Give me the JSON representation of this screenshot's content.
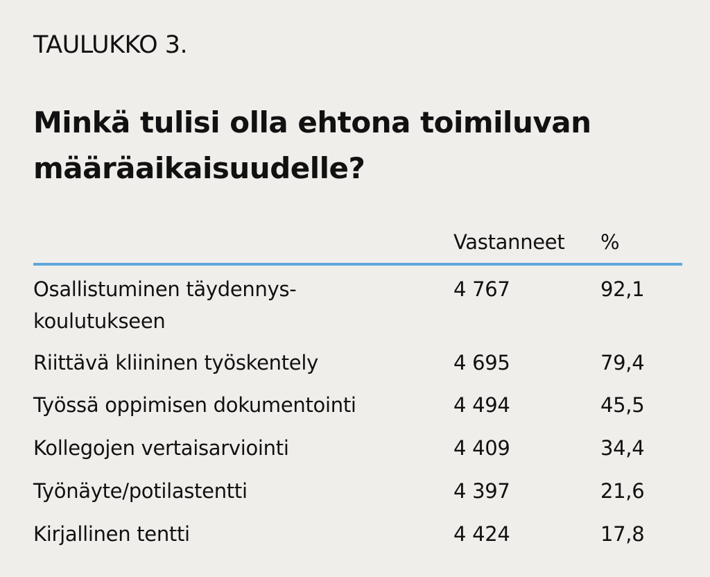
{
  "label": "TAULUKKO 3.",
  "title": "Minkä tulisi olla ehtona toimiluvan määräaikaisuudelle?",
  "chart_data": {
    "type": "table",
    "title": "Minkä tulisi olla ehtona toimiluvan määräaikaisuudelle?",
    "columns": [
      "",
      "Vastanneet",
      "%"
    ],
    "rows": [
      {
        "label": "Osallistuminen täydennys- koulutukseen",
        "vastanneet": "4 767",
        "percent": "92,1"
      },
      {
        "label": "Riittävä kliininen työskentely",
        "vastanneet": "4 695",
        "percent": "79,4"
      },
      {
        "label": "Työssä oppimisen dokumentointi",
        "vastanneet": "4 494",
        "percent": "45,5"
      },
      {
        "label": "Kollegojen vertaisarviointi",
        "vastanneet": "4 409",
        "percent": "34,4"
      },
      {
        "label": "Työnäyte/potilastentti",
        "vastanneet": "4 397",
        "percent": "21,6"
      },
      {
        "label": "Kirjallinen tentti",
        "vastanneet": "4 424",
        "percent": "17,8"
      }
    ],
    "rule_color": "#5fa8dc"
  }
}
